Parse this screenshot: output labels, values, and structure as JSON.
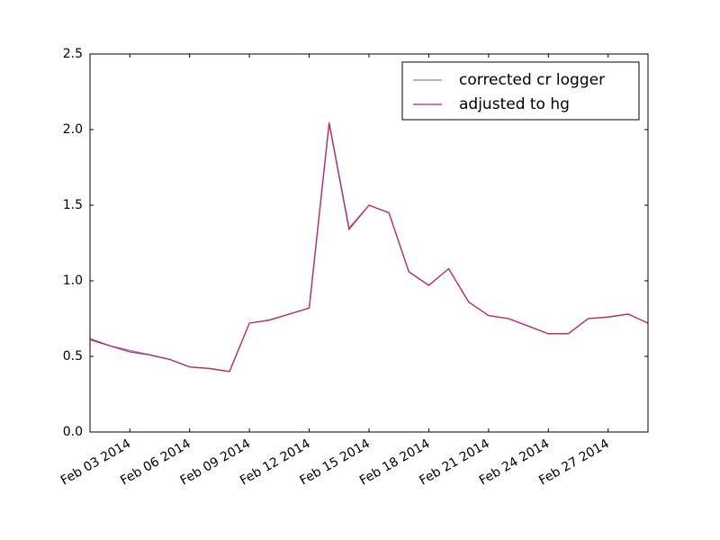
{
  "chart_data": {
    "type": "line",
    "x": [
      "2014-02-01",
      "2014-02-02",
      "2014-02-03",
      "2014-02-04",
      "2014-02-05",
      "2014-02-06",
      "2014-02-07",
      "2014-02-08",
      "2014-02-09",
      "2014-02-10",
      "2014-02-11",
      "2014-02-12",
      "2014-02-13",
      "2014-02-14",
      "2014-02-15",
      "2014-02-16",
      "2014-02-17",
      "2014-02-18",
      "2014-02-19",
      "2014-02-20",
      "2014-02-21",
      "2014-02-22",
      "2014-02-23",
      "2014-02-24",
      "2014-02-25",
      "2014-02-26",
      "2014-02-27",
      "2014-02-28",
      "2014-03-01"
    ],
    "series": [
      {
        "name": "corrected cr logger",
        "color": "#8080e0",
        "values": [
          0.62,
          0.57,
          0.54,
          0.51,
          0.48,
          0.43,
          0.42,
          0.4,
          0.72,
          0.74,
          0.78,
          0.82,
          2.05,
          1.35,
          1.5,
          1.45,
          1.06,
          0.97,
          1.08,
          0.86,
          0.77,
          0.75,
          0.7,
          0.65,
          0.65,
          0.75,
          0.76,
          0.78,
          0.72
        ]
      },
      {
        "name": "adjusted to hg",
        "color": "#c0285a",
        "values": [
          0.61,
          0.57,
          0.53,
          0.51,
          0.48,
          0.43,
          0.42,
          0.4,
          0.72,
          0.74,
          0.78,
          0.82,
          2.04,
          1.34,
          1.5,
          1.45,
          1.06,
          0.97,
          1.08,
          0.86,
          0.77,
          0.75,
          0.7,
          0.65,
          0.65,
          0.75,
          0.76,
          0.78,
          0.72
        ]
      }
    ],
    "xlim": [
      "2014-02-01",
      "2014-03-01"
    ],
    "xticks": [
      {
        "value": "2014-02-03",
        "label": "Feb 03 2014"
      },
      {
        "value": "2014-02-06",
        "label": "Feb 06 2014"
      },
      {
        "value": "2014-02-09",
        "label": "Feb 09 2014"
      },
      {
        "value": "2014-02-12",
        "label": "Feb 12 2014"
      },
      {
        "value": "2014-02-15",
        "label": "Feb 15 2014"
      },
      {
        "value": "2014-02-18",
        "label": "Feb 18 2014"
      },
      {
        "value": "2014-02-21",
        "label": "Feb 21 2014"
      },
      {
        "value": "2014-02-24",
        "label": "Feb 24 2014"
      },
      {
        "value": "2014-02-27",
        "label": "Feb 27 2014"
      }
    ],
    "ylim": [
      0,
      2.5
    ],
    "yticks": [
      {
        "value": 0,
        "label": "0.0"
      },
      0.5,
      {
        "value": 1,
        "label": "1.0"
      },
      1.5,
      {
        "value": 2,
        "label": "2.0"
      },
      2.5
    ],
    "legend": "upper right",
    "grid": false
  }
}
